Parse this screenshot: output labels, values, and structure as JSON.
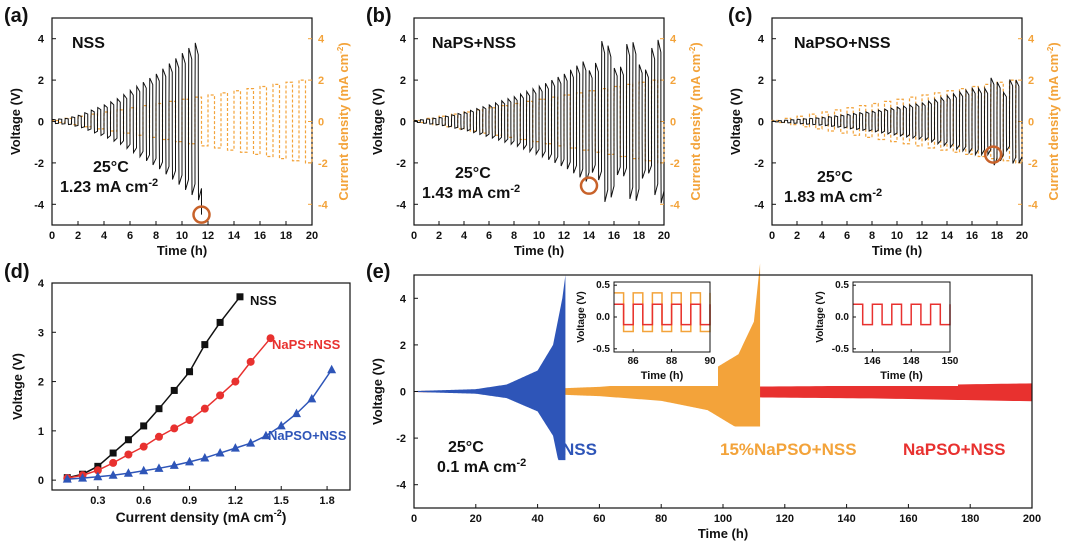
{
  "colors": {
    "black": "#111111",
    "orange": "#f3a33a",
    "red": "#e8312f",
    "blue": "#2e55b8",
    "circle": "#c8622a"
  },
  "panels": {
    "a": {
      "label": "(a)",
      "name": "NSS",
      "temp": "25°C",
      "cd_value": "1.23 mA cm",
      "cd_exp": "-2",
      "fail_time_h": 11.5,
      "fail_voltage": -4.5,
      "end_time_h": 11.5,
      "max_voltage": 3.9
    },
    "b": {
      "label": "(b)",
      "name": "NaPS+NSS",
      "temp": "25°C",
      "cd_value": "1.43 mA cm",
      "cd_exp": "-2",
      "fail_time_h": 14.0,
      "fail_voltage": -3.1,
      "end_time_h": 19.6,
      "max_voltage": 4.2
    },
    "c": {
      "label": "(c)",
      "name": "NaPSO+NSS",
      "temp": "25°C",
      "cd_value": "1.83 mA cm",
      "cd_exp": "-2",
      "fail_time_h": 17.7,
      "fail_voltage": -1.6,
      "end_time_h": 20,
      "max_voltage": 2.3
    },
    "top_axes": {
      "xlabel": "Time (h)",
      "ylabel": "Voltage (V)",
      "y2label": "Current density (mA cm",
      "y2label_exp": "-2",
      "y2label_end": ")",
      "xticks": [
        "0",
        "2",
        "4",
        "6",
        "8",
        "10",
        "12",
        "14",
        "16",
        "18",
        "20"
      ],
      "yticks": [
        "-4",
        "-2",
        "0",
        "2",
        "4"
      ],
      "y2ticks": [
        "-4",
        "-2",
        "0",
        "2",
        "4"
      ]
    },
    "d": {
      "label": "(d)",
      "xlabel": "Current density (mA cm",
      "xlabel_exp": "-2",
      "xlabel_end": ")",
      "ylabel": "Voltage (V)",
      "xticks": [
        "0.3",
        "0.6",
        "0.9",
        "1.2",
        "1.5",
        "1.8"
      ],
      "yticks": [
        "0",
        "1",
        "2",
        "3",
        "4"
      ],
      "labels": {
        "nss": "NSS",
        "naps": "NaPS+NSS",
        "napso": "NaPSO+NSS"
      }
    },
    "e": {
      "label": "(e)",
      "xlabel": "Time (h)",
      "ylabel": "Voltage (V)",
      "xticks": [
        "0",
        "20",
        "40",
        "60",
        "80",
        "100",
        "120",
        "140",
        "160",
        "180",
        "200"
      ],
      "yticks": [
        "-4",
        "-2",
        "0",
        "2",
        "4"
      ],
      "temp": "25°C",
      "cd_value": "0.1 mA cm",
      "cd_exp": "-2",
      "labels": {
        "nss": "NSS",
        "p15": "15%NaPSO+NSS",
        "napso": "NaPSO+NSS"
      },
      "inset1": {
        "xlabel": "Time (h)",
        "ylabel": "Voltage (V)",
        "xticks": [
          "86",
          "88",
          "90"
        ],
        "yticks": [
          "-0.5",
          "0.0",
          "0.5"
        ]
      },
      "inset2": {
        "xlabel": "Time (h)",
        "ylabel": "Voltage (V)",
        "xticks": [
          "146",
          "148",
          "150"
        ],
        "yticks": [
          "-0.5",
          "0.0",
          "0.5"
        ]
      }
    }
  },
  "chart_data": [
    {
      "type": "line",
      "title": "NSS",
      "xlabel": "Time (h)",
      "ylabel": "Voltage (V)",
      "y2label": "Current density (mA cm-2)",
      "xlim": [
        0,
        20
      ],
      "ylim": [
        -5,
        5
      ],
      "y2lim": [
        -5,
        5
      ],
      "series": [
        {
          "name": "Voltage",
          "x": [
            0,
            1,
            2,
            3,
            4,
            5,
            6,
            7,
            8,
            9,
            10,
            11,
            11.5
          ],
          "envelope": [
            0.1,
            0.15,
            0.3,
            0.55,
            0.8,
            1.1,
            1.5,
            1.9,
            2.3,
            2.8,
            3.3,
            3.8,
            -4.5
          ]
        },
        {
          "name": "Current density",
          "x": [
            0,
            20
          ],
          "amplitude": [
            0.05,
            2.1
          ]
        }
      ]
    },
    {
      "type": "line",
      "title": "NaPS+NSS",
      "xlabel": "Time (h)",
      "ylabel": "Voltage (V)",
      "y2label": "Current density (mA cm-2)",
      "xlim": [
        0,
        20
      ],
      "ylim": [
        -5,
        5
      ],
      "y2lim": [
        -5,
        5
      ],
      "series": [
        {
          "name": "Voltage",
          "x": [
            0,
            2,
            4,
            6,
            8,
            10,
            12,
            13.5,
            14,
            16,
            18,
            19.6
          ],
          "envelope": [
            0.05,
            0.2,
            0.45,
            0.8,
            1.2,
            1.7,
            2.3,
            2.9,
            -3.1,
            4.2,
            3.8,
            -1.2
          ]
        },
        {
          "name": "Current density",
          "x": [
            0,
            20
          ],
          "amplitude": [
            0.05,
            2.1
          ]
        }
      ]
    },
    {
      "type": "line",
      "title": "NaPSO+NSS",
      "xlabel": "Time (h)",
      "ylabel": "Voltage (V)",
      "y2label": "Current density (mA cm-2)",
      "xlim": [
        0,
        20
      ],
      "ylim": [
        -5,
        5
      ],
      "y2lim": [
        -5,
        5
      ],
      "series": [
        {
          "name": "Voltage",
          "x": [
            0,
            4,
            8,
            12,
            16,
            17.7,
            20
          ],
          "envelope": [
            0.02,
            0.2,
            0.5,
            0.9,
            1.6,
            -1.6,
            2.2
          ]
        },
        {
          "name": "Current density",
          "x": [
            0,
            20
          ],
          "amplitude": [
            0.05,
            2.1
          ]
        }
      ]
    },
    {
      "type": "scatter",
      "xlabel": "Current density (mA cm-2)",
      "ylabel": "Voltage (V)",
      "xlim": [
        0,
        1.95
      ],
      "ylim": [
        -0.2,
        4
      ],
      "series": [
        {
          "name": "NSS",
          "color": "#111111",
          "marker": "square",
          "x": [
            0.1,
            0.2,
            0.3,
            0.4,
            0.5,
            0.6,
            0.7,
            0.8,
            0.9,
            1.0,
            1.1,
            1.23
          ],
          "y": [
            0.05,
            0.12,
            0.28,
            0.55,
            0.82,
            1.1,
            1.45,
            1.82,
            2.2,
            2.75,
            3.2,
            3.72
          ]
        },
        {
          "name": "NaPS+NSS",
          "color": "#e8312f",
          "marker": "circle",
          "x": [
            0.1,
            0.2,
            0.3,
            0.4,
            0.5,
            0.6,
            0.7,
            0.8,
            0.9,
            1.0,
            1.1,
            1.2,
            1.3,
            1.43
          ],
          "y": [
            0.04,
            0.1,
            0.2,
            0.35,
            0.52,
            0.68,
            0.88,
            1.05,
            1.22,
            1.45,
            1.72,
            2.0,
            2.4,
            2.88
          ]
        },
        {
          "name": "NaPSO+NSS",
          "color": "#2e55b8",
          "marker": "triangle",
          "x": [
            0.1,
            0.2,
            0.3,
            0.4,
            0.5,
            0.6,
            0.7,
            0.8,
            0.9,
            1.0,
            1.1,
            1.2,
            1.3,
            1.4,
            1.5,
            1.6,
            1.7,
            1.83
          ],
          "y": [
            0.02,
            0.04,
            0.07,
            0.1,
            0.14,
            0.19,
            0.24,
            0.3,
            0.37,
            0.45,
            0.55,
            0.65,
            0.75,
            0.9,
            1.1,
            1.35,
            1.65,
            2.24
          ]
        }
      ]
    },
    {
      "type": "area",
      "xlabel": "Time (h)",
      "ylabel": "Voltage (V)",
      "xlim": [
        0,
        200
      ],
      "ylim": [
        -5,
        5
      ],
      "series": [
        {
          "name": "NSS",
          "color": "#2e55b8",
          "x": [
            0,
            20,
            30,
            40,
            45,
            48,
            49
          ],
          "amplitude": [
            0.02,
            0.1,
            0.3,
            0.9,
            2.0,
            4.0,
            5.0
          ],
          "min_at_end": -3.1
        },
        {
          "name": "15%NaPSO+NSS",
          "color": "#f3a33a",
          "x": [
            0,
            40,
            60,
            80,
            95,
            105,
            110,
            112
          ],
          "amplitude": [
            0.02,
            0.1,
            0.2,
            0.4,
            0.8,
            1.6,
            3.0,
            5.5
          ],
          "min_at_end": -1.5
        },
        {
          "name": "NaPSO+NSS",
          "color": "#e8312f",
          "x": [
            0,
            50,
            100,
            150,
            200
          ],
          "amplitude": [
            0.02,
            0.1,
            0.2,
            0.25,
            0.35
          ]
        }
      ],
      "insets": [
        {
          "xlim": [
            85,
            90
          ],
          "ylim": [
            -0.5,
            0.5
          ],
          "series": [
            {
              "name": "15%NaPSO+NSS",
              "color": "#f3a33a",
              "amplitude": 0.38,
              "period": 1.0
            },
            {
              "name": "NaPSO+NSS",
              "color": "#e8312f",
              "amplitude": 0.2,
              "period": 1.0
            }
          ]
        },
        {
          "xlim": [
            145,
            150
          ],
          "ylim": [
            -0.5,
            0.5
          ],
          "series": [
            {
              "name": "NaPSO+NSS",
              "color": "#e8312f",
              "amplitude": 0.2,
              "period": 1.0
            }
          ]
        }
      ]
    }
  ]
}
